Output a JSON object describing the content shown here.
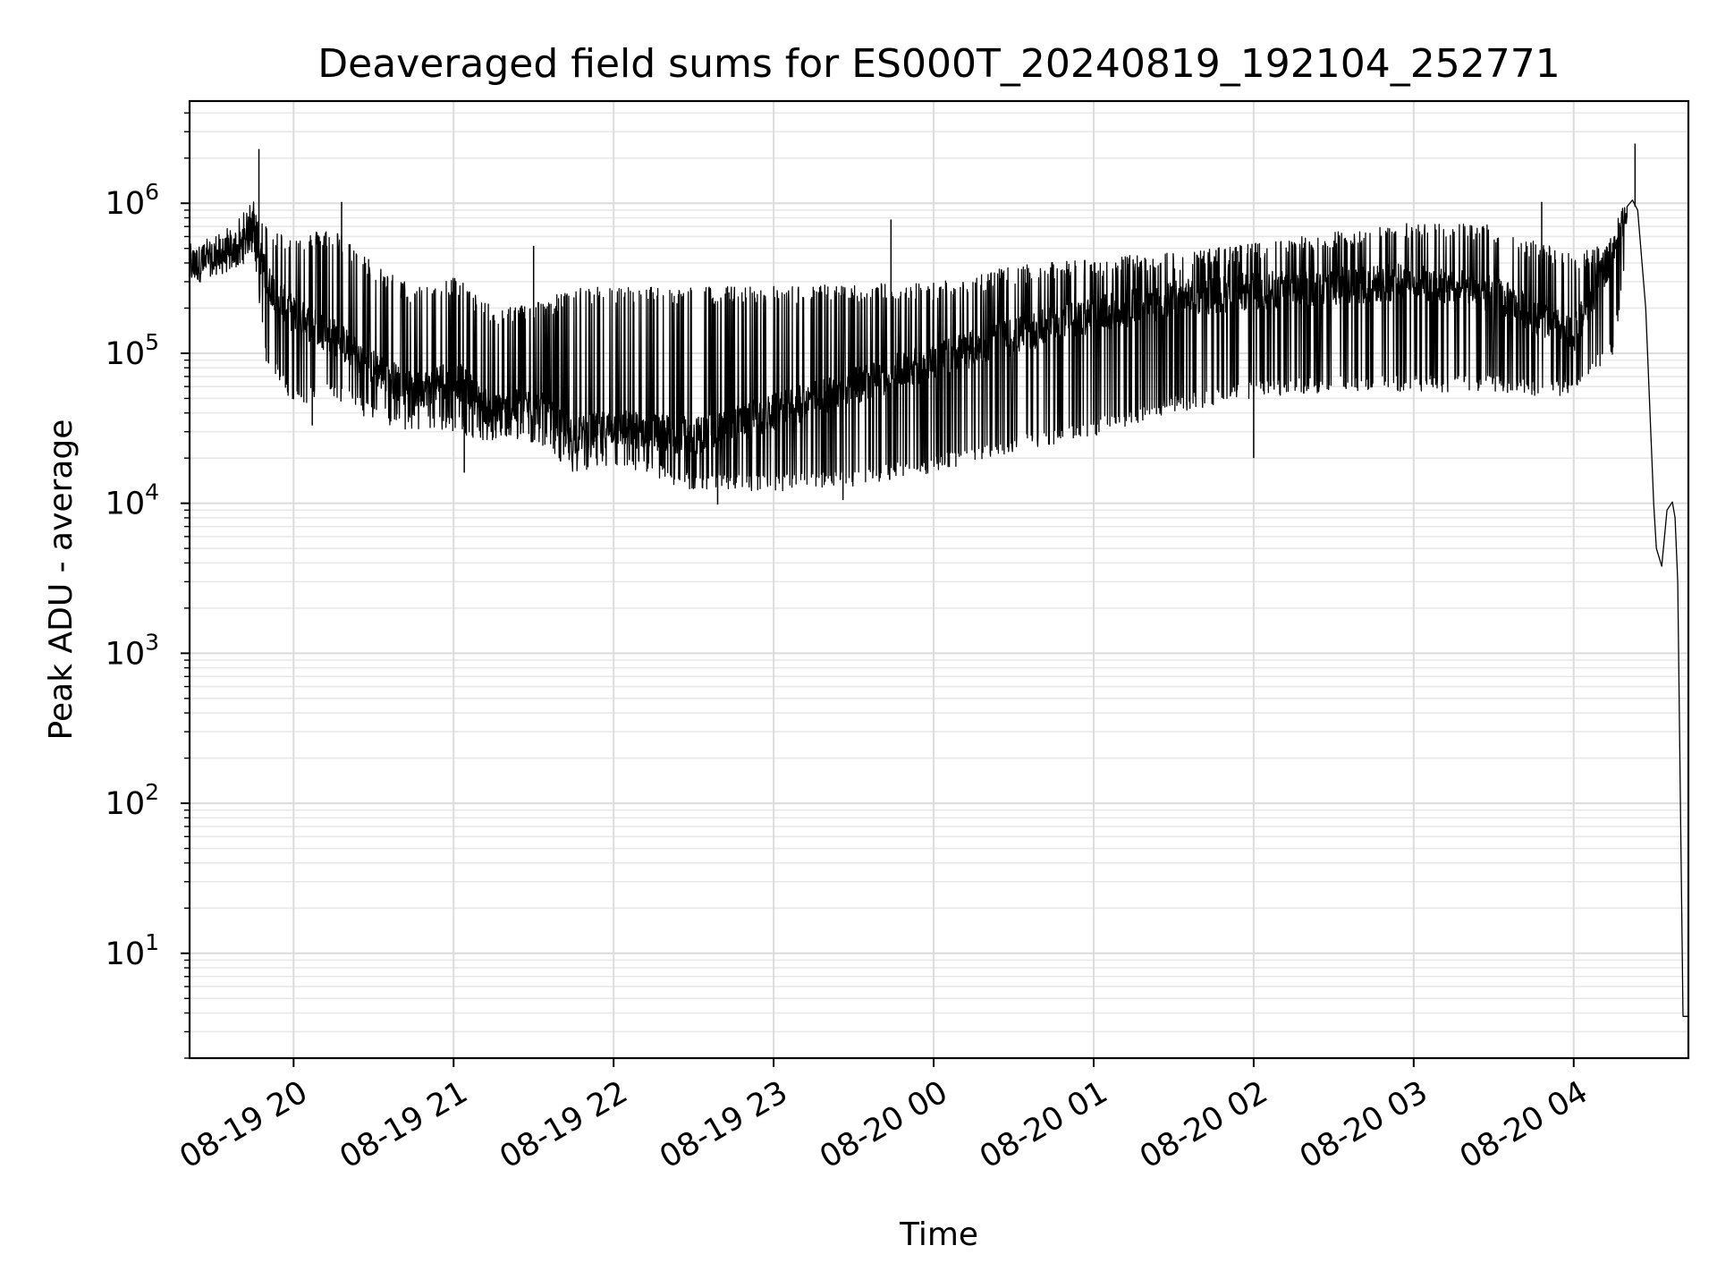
{
  "chart_data": {
    "type": "line",
    "title": "Deaveraged field sums for ES000T_20240819_192104_252771",
    "xlabel": "Time",
    "ylabel": "Peak ADU - average",
    "y_scale": "log",
    "grid": true,
    "x_range": [
      "2024-08-19 19:21",
      "2024-08-20 04:43"
    ],
    "y_range": [
      2,
      4800000
    ],
    "x_ticks": [
      {
        "t": "2024-08-19 20:00",
        "label": "08-19 20"
      },
      {
        "t": "2024-08-19 21:00",
        "label": "08-19 21"
      },
      {
        "t": "2024-08-19 22:00",
        "label": "08-19 22"
      },
      {
        "t": "2024-08-19 23:00",
        "label": "08-19 23"
      },
      {
        "t": "2024-08-20 00:00",
        "label": "08-20 00"
      },
      {
        "t": "2024-08-20 01:00",
        "label": "08-20 01"
      },
      {
        "t": "2024-08-20 02:00",
        "label": "08-20 02"
      },
      {
        "t": "2024-08-20 03:00",
        "label": "08-20 03"
      },
      {
        "t": "2024-08-20 04:00",
        "label": "08-20 04"
      }
    ],
    "y_ticks": [
      {
        "value": 10,
        "base": "10",
        "exp": "1"
      },
      {
        "value": 100,
        "base": "10",
        "exp": "2"
      },
      {
        "value": 1000,
        "base": "10",
        "exp": "3"
      },
      {
        "value": 10000,
        "base": "10",
        "exp": "4"
      },
      {
        "value": 100000,
        "base": "10",
        "exp": "5"
      },
      {
        "value": 1000000,
        "base": "10",
        "exp": "6"
      }
    ],
    "series": [
      {
        "color": "#000000",
        "envelope": {
          "t": [
            "2024-08-19 19:21",
            "2024-08-19 19:30",
            "2024-08-19 19:40",
            "2024-08-19 19:45",
            "2024-08-19 19:50",
            "2024-08-19 20:00",
            "2024-08-19 20:15",
            "2024-08-19 20:30",
            "2024-08-19 20:45",
            "2024-08-19 21:00",
            "2024-08-19 21:15",
            "2024-08-19 21:30",
            "2024-08-19 21:45",
            "2024-08-19 22:00",
            "2024-08-19 22:30",
            "2024-08-19 23:00",
            "2024-08-19 23:30",
            "2024-08-20 00:00",
            "2024-08-20 00:30",
            "2024-08-20 01:00",
            "2024-08-20 01:30",
            "2024-08-20 02:00",
            "2024-08-20 02:30",
            "2024-08-20 03:00",
            "2024-08-20 03:30",
            "2024-08-20 04:00",
            "2024-08-20 04:15",
            "2024-08-20 04:20"
          ],
          "baseline": [
            380000,
            420000,
            500000,
            700000,
            300000,
            180000,
            130000,
            80000,
            55000,
            70000,
            40000,
            45000,
            28000,
            32000,
            28000,
            40000,
            60000,
            90000,
            130000,
            180000,
            230000,
            260000,
            280000,
            300000,
            250000,
            130000,
            500000,
            950000
          ],
          "upper": [
            550000,
            600000,
            800000,
            1100000,
            700000,
            600000,
            700000,
            400000,
            280000,
            330000,
            200000,
            220000,
            270000,
            280000,
            280000,
            280000,
            290000,
            300000,
            380000,
            430000,
            470000,
            540000,
            650000,
            750000,
            720000,
            450000,
            600000,
            1000000
          ],
          "lower": [
            300000,
            330000,
            380000,
            450000,
            80000,
            45000,
            50000,
            35000,
            30000,
            30000,
            25000,
            25000,
            16000,
            17000,
            12000,
            12000,
            13000,
            16000,
            22000,
            28000,
            40000,
            50000,
            55000,
            55000,
            55000,
            50000,
            100000,
            500000
          ]
        },
        "spikes": [
          {
            "t": "2024-08-19 19:47",
            "value": 2300000
          },
          {
            "t": "2024-08-19 20:18",
            "value": 1020000
          },
          {
            "t": "2024-08-19 21:30",
            "value": 520000
          },
          {
            "t": "2024-08-19 23:44",
            "value": 780000
          },
          {
            "t": "2024-08-20 01:54",
            "value": 480000
          },
          {
            "t": "2024-08-20 03:48",
            "value": 1020000
          },
          {
            "t": "2024-08-20 04:23",
            "value": 2500000
          },
          {
            "t": "2024-08-19 20:07",
            "value": 33000
          },
          {
            "t": "2024-08-19 21:04",
            "value": 16000
          },
          {
            "t": "2024-08-19 22:39",
            "value": 9800
          },
          {
            "t": "2024-08-19 23:26",
            "value": 10500
          },
          {
            "t": "2024-08-20 02:00",
            "value": 20000
          }
        ],
        "tail": {
          "t": [
            "2024-08-20 04:20",
            "2024-08-20 04:22",
            "2024-08-20 04:24",
            "2024-08-20 04:27",
            "2024-08-20 04:30",
            "2024-08-20 04:31",
            "2024-08-20 04:33",
            "2024-08-20 04:35",
            "2024-08-20 04:37",
            "2024-08-20 04:38",
            "2024-08-20 04:39",
            "2024-08-20 04:40",
            "2024-08-20 04:41",
            "2024-08-20 04:43"
          ],
          "values": [
            950000,
            1050000,
            900000,
            200000,
            10000,
            5000,
            3800,
            9000,
            10200,
            8000,
            3000,
            100,
            3.8,
            3.8
          ]
        }
      }
    ]
  }
}
